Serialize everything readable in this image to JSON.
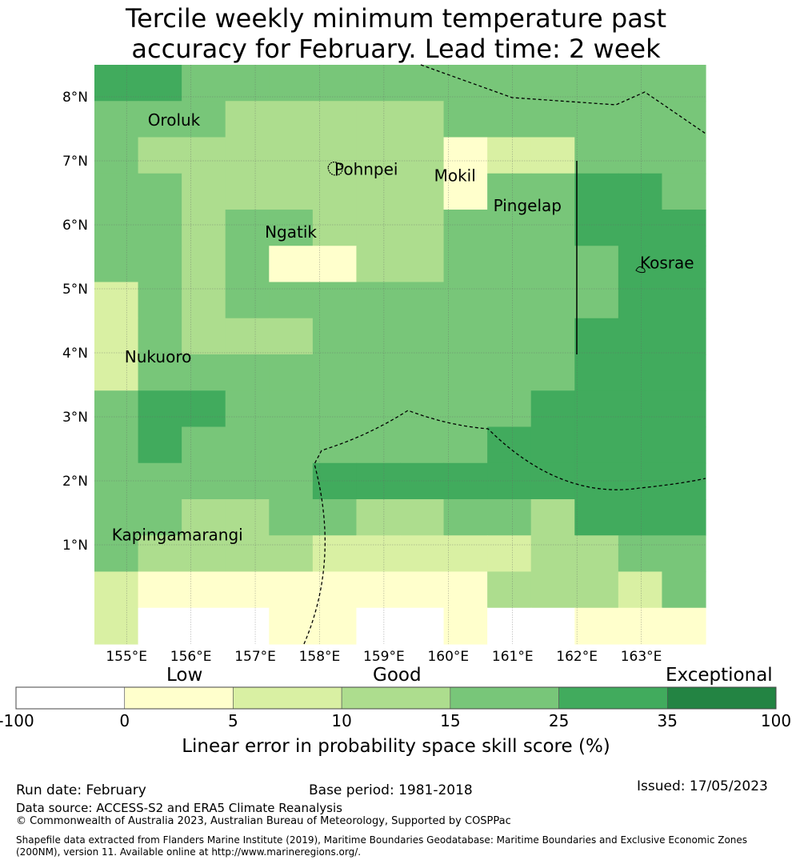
{
  "title": {
    "line1": "Tercile weekly minimum temperature past",
    "line2": "accuracy for February. Lead time: 2 week"
  },
  "map": {
    "lon_range": [
      154.5,
      164.0
    ],
    "lat_range": [
      -0.55,
      8.5
    ],
    "x_ticks": [
      {
        "value": 155,
        "label": "155°E"
      },
      {
        "value": 156,
        "label": "156°E"
      },
      {
        "value": 157,
        "label": "157°E"
      },
      {
        "value": 158,
        "label": "158°E"
      },
      {
        "value": 159,
        "label": "159°E"
      },
      {
        "value": 160,
        "label": "160°E"
      },
      {
        "value": 161,
        "label": "161°E"
      },
      {
        "value": 162,
        "label": "162°E"
      },
      {
        "value": 163,
        "label": "163°E"
      }
    ],
    "y_ticks": [
      {
        "value": 1,
        "label": "1°N"
      },
      {
        "value": 2,
        "label": "2°N"
      },
      {
        "value": 3,
        "label": "3°N"
      },
      {
        "value": 4,
        "label": "4°N"
      },
      {
        "value": 5,
        "label": "5°N"
      },
      {
        "value": 6,
        "label": "6°N"
      },
      {
        "value": 7,
        "label": "7°N"
      },
      {
        "value": 8,
        "label": "8°N"
      }
    ],
    "places": [
      {
        "name": "Oroluk",
        "lon": 155.33,
        "lat": 7.55
      },
      {
        "name": "Pohnpei",
        "lon": 158.23,
        "lat": 6.78
      },
      {
        "name": "Mokil",
        "lon": 159.78,
        "lat": 6.68
      },
      {
        "name": "Pingelap",
        "lon": 160.7,
        "lat": 6.21
      },
      {
        "name": "Ngatik",
        "lon": 157.15,
        "lat": 5.8
      },
      {
        "name": "Kosrae",
        "lon": 162.98,
        "lat": 5.32
      },
      {
        "name": "Nukuoro",
        "lon": 154.97,
        "lat": 3.85
      },
      {
        "name": "Kapingamarangi",
        "lon": 154.77,
        "lat": 1.07
      }
    ],
    "grid_cols": 14,
    "grid_rows": 16,
    "skill_grid_rows_north_to_south": [
      "55333333333333",
      "33344444333333",
      "34444444122333",
      "33444444133553",
      "33433444333556",
      "33431144333355",
      "23433333333355",
      "23444333333556",
      "23333333333666",
      "35533333336666",
      "36333333366666",
      "33333566666666",
      "33443344334666",
      "34444222224433",
      "21111111144423",
      "20001100100111"
    ],
    "color_key": {
      "0": "#ffffff",
      "1": "#ffffcc",
      "2": "#d9f0a3",
      "3": "#78c679",
      "4": "#addd8e",
      "5": "#41ab5d",
      "6": "#41ab5d"
    }
  },
  "colorbar": {
    "categories": [
      "Low",
      "Good",
      "Exceptional"
    ],
    "ticks": [
      "-100",
      "0",
      "5",
      "10",
      "15",
      "25",
      "35",
      "100"
    ],
    "colors": [
      "#ffffff",
      "#ffffcc",
      "#d9f0a3",
      "#addd8e",
      "#78c679",
      "#41ab5d",
      "#238443"
    ],
    "label": "Linear error in probability space skill score (%)"
  },
  "footer": {
    "run_date": "Run date: February",
    "base_period": "Base period: 1981-2018",
    "issued": "Issued: 17/05/2023",
    "data_source": "Data source: ACCESS-S2 and ERA5 Climate Reanalysis",
    "copyright": "© Commonwealth of Australia 2023, Australian Bureau of Meteorology, Supported by COSPPac",
    "shapefile": "Shapefile data extracted from Flanders Marine Institute (2019), Maritime Boundaries Geodatabase: Maritime Boundaries and Exclusive Economic Zones (200NM), version 11. Available online at http://www.marineregions.org/."
  }
}
